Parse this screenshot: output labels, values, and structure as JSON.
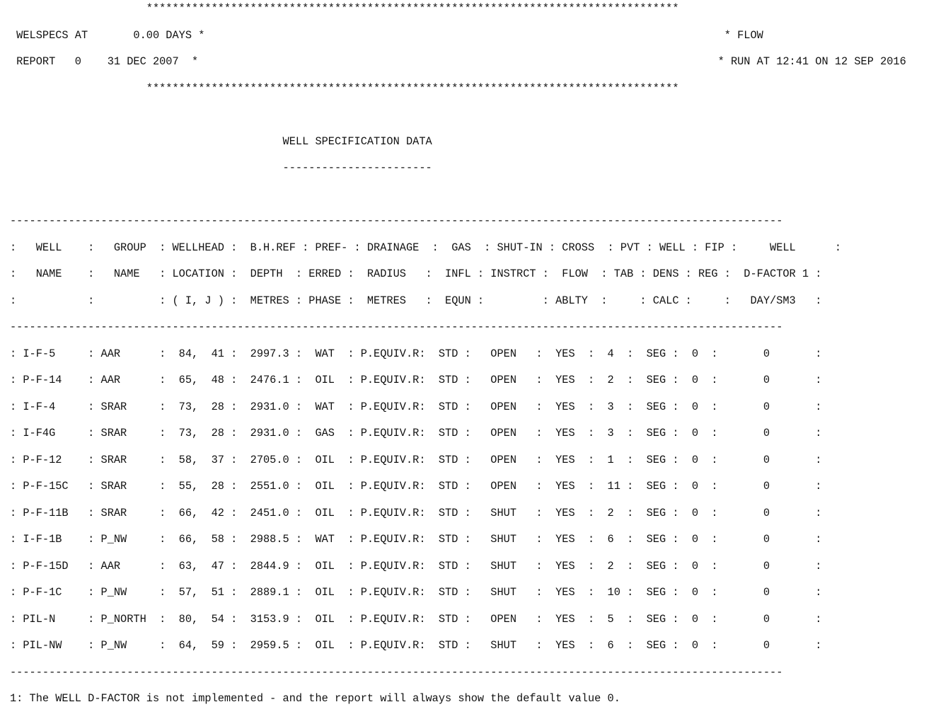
{
  "report": {
    "lines": [
      "                     **********************************************************************************",
      " WELSPECS AT       0.00 DAYS *                                                                                * FLOW",
      " REPORT   0    31 DEC 2007  *                                                                                * RUN AT 12:41 ON 12 SEP 2016",
      "                     **********************************************************************************",
      "",
      "                                          WELL SPECIFICATION DATA",
      "                                          -----------------------",
      "",
      "-----------------------------------------------------------------------------------------------------------------------",
      ":   WELL    :   GROUP  : WELLHEAD :  B.H.REF : PREF- : DRAINAGE  :  GAS  : SHUT-IN : CROSS  : PVT : WELL : FIP :     WELL      :",
      ":   NAME    :   NAME   : LOCATION :  DEPTH  : ERRED :  RADIUS   :  INFL : INSTRCT :  FLOW  : TAB : DENS : REG :  D-FACTOR 1 :",
      ":           :          : ( I, J ) :  METRES : PHASE :  METRES   :  EQUN :         : ABLTY  :     : CALC :     :   DAY/SM3   :",
      "-----------------------------------------------------------------------------------------------------------------------",
      ": I-F-5     : AAR      :  84,  41 :  2997.3 :  WAT  : P.EQUIV.R:  STD :   OPEN   :  YES  :  4  :  SEG :  0  :       0       :",
      ": P-F-14    : AAR      :  65,  48 :  2476.1 :  OIL  : P.EQUIV.R:  STD :   OPEN   :  YES  :  2  :  SEG :  0  :       0       :",
      ": I-F-4     : SRAR     :  73,  28 :  2931.0 :  WAT  : P.EQUIV.R:  STD :   OPEN   :  YES  :  3  :  SEG :  0  :       0       :",
      ": I-F4G     : SRAR     :  73,  28 :  2931.0 :  GAS  : P.EQUIV.R:  STD :   OPEN   :  YES  :  3  :  SEG :  0  :       0       :",
      ": P-F-12    : SRAR     :  58,  37 :  2705.0 :  OIL  : P.EQUIV.R:  STD :   OPEN   :  YES  :  1  :  SEG :  0  :       0       :",
      ": P-F-15C   : SRAR     :  55,  28 :  2551.0 :  OIL  : P.EQUIV.R:  STD :   OPEN   :  YES  :  11 :  SEG :  0  :       0       :",
      ": P-F-11B   : SRAR     :  66,  42 :  2451.0 :  OIL  : P.EQUIV.R:  STD :   SHUT   :  YES  :  2  :  SEG :  0  :       0       :",
      ": I-F-1B    : P_NW     :  66,  58 :  2988.5 :  WAT  : P.EQUIV.R:  STD :   SHUT   :  YES  :  6  :  SEG :  0  :       0       :",
      ": P-F-15D   : AAR      :  63,  47 :  2844.9 :  OIL  : P.EQUIV.R:  STD :   SHUT   :  YES  :  2  :  SEG :  0  :       0       :",
      ": P-F-1C    : P_NW     :  57,  51 :  2889.1 :  OIL  : P.EQUIV.R:  STD :   SHUT   :  YES  :  10 :  SEG :  0  :       0       :",
      ": PIL-N     : P_NORTH  :  80,  54 :  3153.9 :  OIL  : P.EQUIV.R:  STD :   OPEN   :  YES  :  5  :  SEG :  0  :       0       :",
      ": PIL-NW    : P_NW     :  64,  59 :  2959.5 :  OIL  : P.EQUIV.R:  STD :   SHUT   :  YES  :  6  :  SEG :  0  :       0       :",
      "-----------------------------------------------------------------------------------------------------------------------",
      "1: The WELL D-FACTOR is not implemented - and the report will always show the default value 0."
    ]
  }
}
